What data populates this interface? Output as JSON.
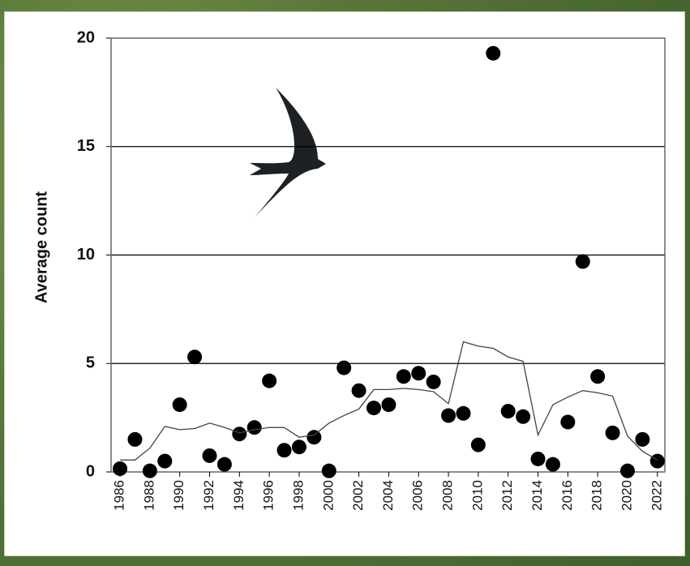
{
  "chart_data": {
    "type": "scatter",
    "ylabel": "Average count",
    "x": [
      1986,
      1987,
      1988,
      1989,
      1990,
      1991,
      1992,
      1993,
      1994,
      1995,
      1996,
      1997,
      1998,
      1999,
      2000,
      2001,
      2002,
      2003,
      2004,
      2005,
      2006,
      2007,
      2008,
      2009,
      2010,
      2011,
      2012,
      2013,
      2014,
      2015,
      2016,
      2017,
      2018,
      2019,
      2020,
      2021,
      2022
    ],
    "series": [
      {
        "style": "markers",
        "color": "#000000",
        "values": [
          0.15,
          1.5,
          0.05,
          0.5,
          3.1,
          5.3,
          0.75,
          0.35,
          1.75,
          2.05,
          4.2,
          1.0,
          1.15,
          1.6,
          0.05,
          4.8,
          3.75,
          2.95,
          3.1,
          4.4,
          4.55,
          4.15,
          2.6,
          2.7,
          1.25,
          19.3,
          2.8,
          2.55,
          0.6,
          0.35,
          2.3,
          9.7,
          4.4,
          1.8,
          0.05,
          1.5,
          0.5
        ]
      },
      {
        "style": "line",
        "color": "#444444",
        "values": [
          0.55,
          0.55,
          1.1,
          2.1,
          1.95,
          2.0,
          2.25,
          2.05,
          1.8,
          1.95,
          2.05,
          2.05,
          1.6,
          1.7,
          2.25,
          2.6,
          2.9,
          3.8,
          3.8,
          3.85,
          3.8,
          3.7,
          3.15,
          6.0,
          5.8,
          5.7,
          5.3,
          5.1,
          1.7,
          3.1,
          3.45,
          3.75,
          3.65,
          3.5,
          1.65,
          0.95,
          0.55
        ]
      }
    ],
    "xlim": [
      1985.4,
      2022.5
    ],
    "xticks": [
      1986,
      1988,
      1990,
      1992,
      1994,
      1996,
      1998,
      2000,
      2002,
      2004,
      2006,
      2008,
      2010,
      2012,
      2014,
      2016,
      2018,
      2020,
      2022
    ],
    "ylim": [
      0,
      20
    ],
    "yticks": [
      0,
      5,
      10,
      15,
      20
    ],
    "grid": true
  }
}
